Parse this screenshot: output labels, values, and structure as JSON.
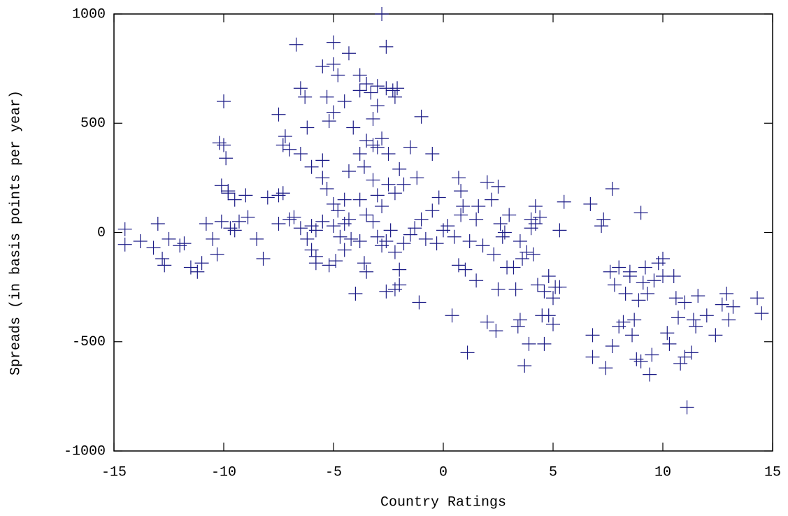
{
  "chart_data": {
    "type": "scatter",
    "x_label": "Country Ratings",
    "y_label": "Spreads (in basis points per year)",
    "xlim": [
      -15,
      15
    ],
    "xticks": [
      -15,
      -10,
      -5,
      0,
      5,
      10,
      15
    ],
    "ylim": [
      -1000,
      1000
    ],
    "yticks": [
      -1000,
      -500,
      0,
      500,
      1000
    ],
    "marker": "plus",
    "series": [
      {
        "color": "#1c1c86",
        "x": [
          -14.5,
          -14.5,
          -13.8,
          -13.2,
          -13,
          -12.8,
          -12.7,
          -12.5,
          -12,
          -11.8,
          -11.5,
          -11.2,
          -11,
          -10.8,
          -10.5,
          -10.3,
          -10.1,
          -10,
          -10.2,
          -10,
          -9.9,
          -9.8,
          -10.1,
          -9.7,
          -9.5,
          -9.3,
          -9,
          -8.9,
          -8.5,
          -8.2,
          -8,
          -7.5,
          -7.3,
          -9.8,
          -9.5,
          -7.5,
          -7.2,
          -7.3,
          -7,
          -6.7,
          -6.5,
          -6.3,
          -6.2,
          -6,
          -6.5,
          -7.5,
          -7,
          -6.8,
          -6.5,
          -6.2,
          -6,
          -5.8,
          -5.8,
          -5.5,
          -5.3,
          -5.2,
          -5,
          -5,
          -5,
          -4.8,
          -4.5,
          -4.3,
          -5.5,
          -5.5,
          -5.3,
          -5,
          -4.8,
          -4.5,
          -4.3,
          -5,
          -4.7,
          -4.5,
          -4.2,
          -5.8,
          -5.5,
          -6,
          -5.2,
          -4.9,
          -4.5,
          -4.3,
          -4.1,
          -4,
          -3.8,
          -3.6,
          -3.5,
          -3.8,
          -3.8,
          -3.5,
          -3.3,
          -3.2,
          -3,
          -3,
          -2.8,
          -2.6,
          -2.6,
          -2.3,
          -2.1,
          -2.2,
          -3.2,
          -3,
          -2.8,
          -2.5,
          -3.5,
          -3.8,
          -3.6,
          -3.2,
          -3,
          -2.8,
          -2.5,
          -2.2,
          -2,
          -1.8,
          -1.5,
          -1.2,
          -1,
          -0.5,
          -3.8,
          -3.5,
          -3.2,
          -3,
          -2.8,
          -2.6,
          -2.4,
          -2.2,
          -2,
          -2.2,
          -2,
          -2.6,
          -1.8,
          -1.5,
          -1.3,
          -1,
          -0.8,
          -0.5,
          -0.3,
          -1.1,
          -0.2,
          0,
          0.2,
          0.5,
          0.8,
          0.7,
          0.9,
          0.7,
          0.8,
          1,
          1.2,
          1.1,
          0.4,
          1.5,
          1.5,
          1.6,
          1.8,
          2,
          2,
          2.2,
          2.3,
          2.4,
          2.5,
          2.5,
          2.6,
          2.7,
          2.8,
          2.9,
          3,
          3.2,
          3.3,
          3.4,
          3.5,
          3.5,
          3.6,
          3.7,
          3.9,
          4,
          4,
          4.2,
          4.1,
          4.3,
          4.5,
          4.6,
          4.6,
          4.8,
          4.8,
          5,
          5,
          5.1,
          5.3,
          5.3,
          5.5,
          4.4,
          4.2,
          3.8,
          6.7,
          6.8,
          6.8,
          7.2,
          7.3,
          7.4,
          7.6,
          7.7,
          7.7,
          7.8,
          8,
          8,
          8.2,
          8.3,
          8.5,
          8.6,
          8.7,
          8.8,
          8.9,
          9,
          9,
          9.1,
          9.2,
          9.4,
          9.5,
          9.6,
          9.8,
          10,
          10,
          10.2,
          10.3,
          10.5,
          10.6,
          10.7,
          10.8,
          11,
          11,
          11.1,
          11.3,
          11.4,
          11.6,
          12,
          12.4,
          12.7,
          12.9,
          13,
          13.2,
          14.3,
          14.5,
          8.5,
          9.3,
          11.5
        ],
        "y": [
          15,
          -55,
          -40,
          -70,
          40,
          -120,
          -150,
          -30,
          -60,
          -50,
          -160,
          -180,
          -140,
          40,
          -30,
          -100,
          50,
          600,
          410,
          400,
          340,
          190,
          215,
          20,
          10,
          50,
          170,
          70,
          -30,
          -120,
          160,
          170,
          180,
          180,
          150,
          540,
          440,
          400,
          380,
          860,
          660,
          620,
          480,
          300,
          360,
          40,
          60,
          70,
          20,
          -30,
          -80,
          -140,
          -110,
          760,
          620,
          510,
          770,
          550,
          870,
          720,
          600,
          820,
          330,
          250,
          200,
          130,
          100,
          150,
          60,
          30,
          -20,
          -80,
          -30,
          10,
          50,
          30,
          -150,
          -130,
          40,
          280,
          480,
          -280,
          -40,
          -140,
          -180,
          650,
          720,
          680,
          640,
          520,
          580,
          670,
          1000,
          850,
          660,
          650,
          660,
          620,
          400,
          390,
          430,
          360,
          420,
          360,
          300,
          240,
          170,
          120,
          220,
          180,
          290,
          220,
          390,
          250,
          530,
          360,
          150,
          80,
          50,
          -20,
          -60,
          -40,
          10,
          -90,
          -170,
          -260,
          -240,
          -270,
          -50,
          -10,
          20,
          60,
          -30,
          100,
          -50,
          -320,
          160,
          10,
          30,
          -20,
          80,
          -150,
          120,
          250,
          190,
          -170,
          -40,
          -550,
          -380,
          -220,
          60,
          120,
          -60,
          230,
          -410,
          150,
          -100,
          -450,
          -260,
          210,
          40,
          -20,
          0,
          -160,
          80,
          -160,
          -260,
          -430,
          -400,
          -40,
          -120,
          -610,
          -510,
          60,
          20,
          120,
          -100,
          -240,
          -380,
          -510,
          -270,
          -380,
          -200,
          -300,
          -420,
          -250,
          -250,
          10,
          140,
          70,
          40,
          -90,
          130,
          -470,
          -570,
          30,
          60,
          -620,
          -180,
          -520,
          200,
          -240,
          -160,
          -430,
          -410,
          -280,
          -200,
          -470,
          -400,
          -580,
          -310,
          90,
          -590,
          -230,
          -160,
          -650,
          -560,
          -220,
          -140,
          -120,
          -200,
          -460,
          -510,
          -200,
          -300,
          -390,
          -600,
          -320,
          -570,
          -800,
          -550,
          -400,
          -290,
          -380,
          -470,
          -330,
          -280,
          -400,
          -340,
          -300,
          -370,
          -180,
          -280,
          -430
        ]
      }
    ]
  }
}
